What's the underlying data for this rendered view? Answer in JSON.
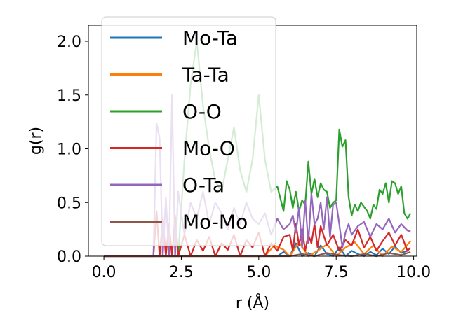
{
  "chart_data": {
    "type": "line",
    "title": "",
    "xlabel": "r (Å)",
    "ylabel": "g(r)",
    "xlim": [
      -0.5,
      10.1
    ],
    "ylim": [
      0.0,
      2.15
    ],
    "xticks": [
      0.0,
      2.5,
      5.0,
      7.5,
      10.0
    ],
    "xtick_labels": [
      "0.0",
      "2.5",
      "5.0",
      "7.5",
      "10.0"
    ],
    "yticks": [
      0.0,
      0.5,
      1.0,
      1.5,
      2.0
    ],
    "ytick_labels": [
      "0.0",
      "0.5",
      "1.0",
      "1.5",
      "2.0"
    ],
    "grid": false,
    "legend_position": "upper-left",
    "series": [
      {
        "name": "Mo-Ta",
        "color": "#1f77b4",
        "x": [
          0.0,
          5.6,
          5.8,
          6.0,
          6.2,
          6.4,
          6.6,
          6.8,
          7.0,
          7.2,
          7.4,
          7.6,
          7.8,
          8.0,
          8.2,
          8.4,
          8.6,
          8.8,
          9.0,
          9.2,
          9.4,
          9.6,
          9.8
        ],
        "y": [
          0.0,
          0.0,
          0.04,
          0.0,
          0.12,
          0.0,
          0.03,
          0.0,
          0.1,
          0.02,
          0.0,
          0.08,
          0.0,
          0.05,
          0.02,
          0.0,
          0.04,
          0.01,
          0.07,
          0.02,
          0.09,
          0.03,
          0.05
        ]
      },
      {
        "name": "Ta-Ta",
        "color": "#ff7f0e",
        "x": [
          0.0,
          5.2,
          5.5,
          5.8,
          6.0,
          6.3,
          6.6,
          6.9,
          7.2,
          7.5,
          7.8,
          8.1,
          8.4,
          8.7,
          9.0,
          9.3,
          9.6,
          9.9
        ],
        "y": [
          0.0,
          0.0,
          0.1,
          0.06,
          0.0,
          0.13,
          0.0,
          0.05,
          0.11,
          0.0,
          0.08,
          0.13,
          0.02,
          0.1,
          0.0,
          0.09,
          0.04,
          0.14
        ]
      },
      {
        "name": "O-O",
        "color": "#2ca02c",
        "x": [
          0.0,
          2.4,
          2.6,
          2.8,
          3.0,
          3.2,
          3.4,
          3.6,
          3.8,
          4.0,
          4.2,
          4.4,
          4.6,
          4.8,
          5.0,
          5.2,
          5.4,
          5.6,
          5.8,
          5.9,
          6.0,
          6.1,
          6.2,
          6.3,
          6.4,
          6.5,
          6.6,
          6.7,
          6.8,
          6.9,
          7.0,
          7.1,
          7.2,
          7.3,
          7.4,
          7.5,
          7.6,
          7.7,
          7.8,
          7.9,
          8.0,
          8.1,
          8.2,
          8.3,
          8.4,
          8.5,
          8.6,
          8.7,
          8.8,
          8.9,
          9.0,
          9.1,
          9.2,
          9.3,
          9.4,
          9.5,
          9.6,
          9.7,
          9.8,
          9.9
        ],
        "y": [
          0.0,
          0.0,
          0.9,
          1.6,
          2.0,
          1.4,
          1.0,
          0.7,
          0.6,
          0.9,
          1.2,
          0.8,
          0.6,
          0.9,
          1.5,
          0.9,
          0.6,
          0.65,
          0.42,
          0.7,
          0.62,
          0.45,
          0.6,
          0.42,
          0.52,
          0.48,
          0.88,
          0.58,
          0.72,
          0.55,
          0.68,
          0.62,
          0.6,
          0.45,
          0.5,
          0.52,
          1.18,
          1.02,
          1.08,
          0.55,
          0.38,
          0.48,
          0.42,
          0.5,
          0.46,
          0.42,
          0.35,
          0.48,
          0.44,
          0.62,
          0.58,
          0.68,
          0.5,
          0.7,
          0.68,
          0.58,
          0.65,
          0.4,
          0.35,
          0.4
        ]
      },
      {
        "name": "Mo-O",
        "color": "#d62728",
        "x": [
          0.0,
          1.6,
          1.7,
          1.8,
          1.9,
          2.0,
          2.1,
          2.2,
          2.3,
          2.4,
          2.6,
          2.8,
          3.0,
          3.2,
          3.4,
          3.6,
          3.8,
          4.0,
          4.2,
          4.4,
          4.6,
          4.8,
          5.0,
          5.2,
          5.4,
          5.6,
          5.8,
          6.0,
          6.1,
          6.2,
          6.3,
          6.4,
          6.5,
          6.6,
          6.7,
          6.8,
          6.9,
          7.0,
          7.2,
          7.4,
          7.6,
          7.8,
          8.0,
          8.2,
          8.4,
          8.6,
          8.8,
          9.0,
          9.2,
          9.4,
          9.6,
          9.8,
          9.9
        ],
        "y": [
          0.0,
          0.0,
          0.42,
          0.0,
          0.35,
          0.0,
          0.3,
          0.0,
          0.38,
          0.0,
          0.2,
          0.0,
          0.15,
          0.05,
          0.18,
          0.0,
          0.12,
          0.06,
          0.2,
          0.0,
          0.15,
          0.08,
          0.22,
          0.0,
          0.12,
          0.05,
          0.18,
          0.2,
          0.05,
          0.3,
          0.1,
          0.25,
          0.05,
          0.2,
          0.12,
          0.3,
          0.08,
          0.28,
          0.1,
          0.2,
          0.05,
          0.15,
          0.1,
          0.25,
          0.08,
          0.18,
          0.05,
          0.14,
          0.22,
          0.1,
          0.2,
          0.05,
          0.08
        ]
      },
      {
        "name": "O-Ta",
        "color": "#9467bd",
        "x": [
          0.0,
          1.6,
          1.7,
          1.8,
          1.9,
          2.0,
          2.1,
          2.2,
          2.3,
          2.4,
          2.6,
          2.8,
          3.0,
          3.2,
          3.4,
          3.6,
          3.8,
          4.0,
          4.2,
          4.4,
          4.6,
          4.8,
          5.0,
          5.2,
          5.4,
          5.6,
          5.8,
          6.0,
          6.1,
          6.2,
          6.3,
          6.4,
          6.5,
          6.6,
          6.7,
          6.8,
          6.9,
          7.0,
          7.1,
          7.2,
          7.3,
          7.4,
          7.5,
          7.6,
          7.7,
          7.8,
          7.9,
          8.0,
          8.2,
          8.4,
          8.6,
          8.8,
          9.0,
          9.2,
          9.4,
          9.6,
          9.8,
          9.9
        ],
        "y": [
          0.0,
          0.0,
          1.24,
          1.1,
          0.0,
          0.55,
          0.0,
          1.5,
          0.0,
          0.6,
          0.2,
          0.5,
          0.35,
          0.6,
          0.3,
          0.5,
          0.4,
          0.25,
          0.45,
          0.3,
          0.5,
          0.35,
          0.3,
          0.4,
          0.2,
          0.35,
          0.25,
          0.3,
          0.38,
          0.22,
          0.45,
          0.08,
          0.52,
          0.12,
          0.58,
          0.3,
          0.35,
          0.5,
          0.25,
          0.55,
          0.18,
          0.48,
          0.5,
          0.3,
          0.08,
          0.22,
          0.3,
          0.2,
          0.28,
          0.32,
          0.18,
          0.3,
          0.25,
          0.35,
          0.22,
          0.3,
          0.24,
          0.23
        ]
      },
      {
        "name": "Mo-Mo",
        "color": "#8c564b",
        "x": [
          0.0,
          6.0,
          6.4,
          6.8,
          7.2,
          7.6,
          8.0,
          8.4,
          8.8,
          9.2,
          9.6,
          9.9
        ],
        "y": [
          0.0,
          0.0,
          0.02,
          0.0,
          0.03,
          0.01,
          0.0,
          0.02,
          0.0,
          0.03,
          0.01,
          0.04
        ]
      }
    ]
  }
}
